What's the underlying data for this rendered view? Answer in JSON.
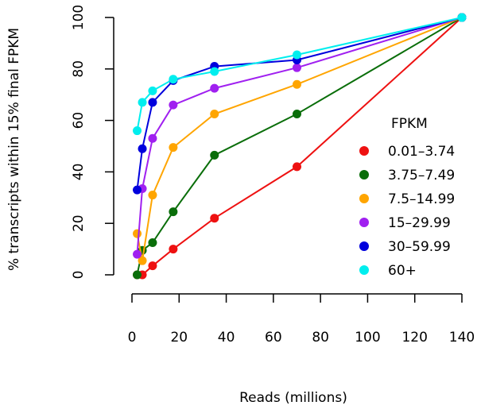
{
  "chart_data": {
    "type": "line",
    "title": "",
    "xlabel": "Reads (millions)",
    "ylabel": "% transcripts within 15% final FPKM",
    "xlim": [
      0,
      140
    ],
    "ylim": [
      0,
      100
    ],
    "x_ticks": [
      0,
      20,
      40,
      60,
      80,
      100,
      120,
      140
    ],
    "y_ticks": [
      0,
      20,
      40,
      60,
      80,
      100
    ],
    "x_tick_labels": [
      "0",
      "20",
      "40",
      "60",
      "80",
      "100",
      "120",
      "140"
    ],
    "y_tick_labels": [
      "0",
      "20",
      "40",
      "60",
      "80",
      "100"
    ],
    "grid": false,
    "legend": {
      "title": "FPKM",
      "placement": "right"
    },
    "series": [
      {
        "name": "0.01–3.74",
        "color": "#ee1111",
        "x": [
          2.2,
          4.4,
          8.75,
          17.5,
          35,
          70,
          140
        ],
        "y": [
          0,
          0,
          3.5,
          10,
          22,
          42,
          100
        ]
      },
      {
        "name": "3.75–7.49",
        "color": "#0a6e0a",
        "x": [
          2.2,
          4.4,
          8.75,
          17.5,
          35,
          70,
          140
        ],
        "y": [
          0,
          9.5,
          12.5,
          24.5,
          46.5,
          62.5,
          100
        ]
      },
      {
        "name": "7.5–14.99",
        "color": "#ffa500",
        "x": [
          2.2,
          4.4,
          8.75,
          17.5,
          35,
          70,
          140
        ],
        "y": [
          16,
          5.5,
          31,
          49.5,
          62.5,
          74,
          100
        ]
      },
      {
        "name": "15–29.99",
        "color": "#a020f0",
        "x": [
          2.2,
          4.4,
          8.75,
          17.5,
          35,
          70,
          140
        ],
        "y": [
          8,
          33.5,
          53,
          66,
          72.5,
          80.5,
          100
        ]
      },
      {
        "name": "30–59.99",
        "color": "#0000dd",
        "x": [
          2.2,
          4.4,
          8.75,
          17.5,
          35,
          70,
          140
        ],
        "y": [
          33,
          49,
          67,
          75.5,
          81,
          83.5,
          100
        ]
      },
      {
        "name": "60+",
        "color": "#00eeee",
        "x": [
          2.2,
          4.4,
          8.75,
          17.5,
          35,
          70,
          140
        ],
        "y": [
          56,
          67,
          71.5,
          76,
          79,
          85.5,
          100
        ]
      }
    ]
  }
}
